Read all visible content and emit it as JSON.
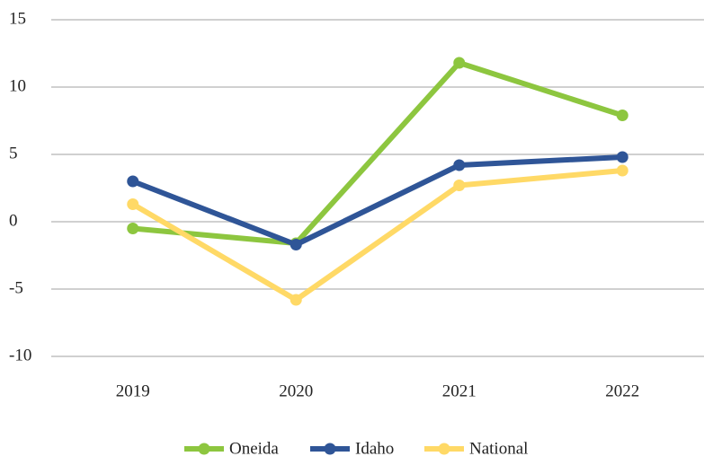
{
  "chart_data": {
    "type": "line",
    "categories": [
      "2019",
      "2020",
      "2021",
      "2022"
    ],
    "series": [
      {
        "name": "Oneida",
        "color": "#8dc63f",
        "values": [
          -0.5,
          -1.6,
          11.8,
          7.9
        ]
      },
      {
        "name": "Idaho",
        "color": "#2f5597",
        "values": [
          3.0,
          -1.7,
          4.2,
          4.8
        ]
      },
      {
        "name": "National",
        "color": "#ffd966",
        "values": [
          1.3,
          -5.8,
          2.7,
          3.8
        ]
      }
    ],
    "ylim": [
      -10,
      15
    ],
    "yticks": [
      -10,
      -5,
      0,
      5,
      10,
      15
    ],
    "grid": true,
    "legend": "bottom"
  }
}
